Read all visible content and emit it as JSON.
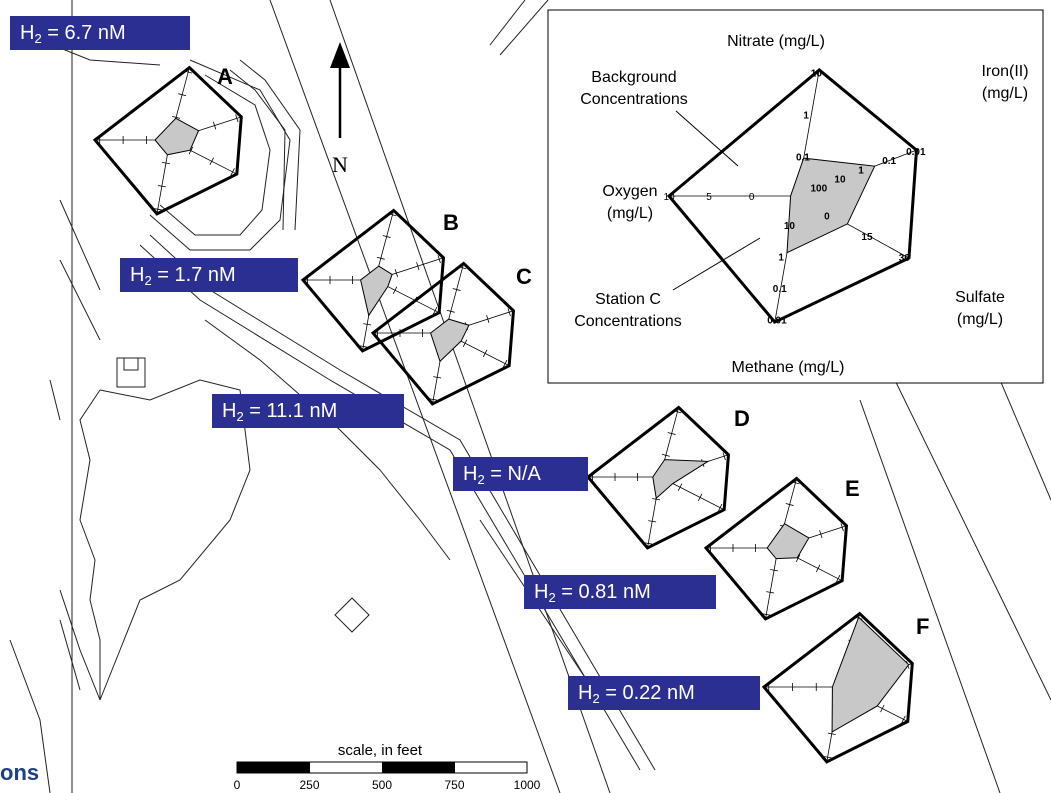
{
  "north_label": "N",
  "brand_text": "ons",
  "stations": [
    {
      "id": "A",
      "h2_prefix": "H",
      "h2_sub": "2",
      "h2_value": " = 6.7 nM"
    },
    {
      "id": "B",
      "h2_prefix": "H",
      "h2_sub": "2",
      "h2_value": " = 1.7 nM"
    },
    {
      "id": "C",
      "h2_prefix": "H",
      "h2_sub": "2",
      "h2_value": " = 11.1 nM"
    },
    {
      "id": "D",
      "h2_prefix": "H",
      "h2_sub": "2",
      "h2_value": " = N/A"
    },
    {
      "id": "E",
      "h2_prefix": "H",
      "h2_sub": "2",
      "h2_value": " = 0.81 nM"
    },
    {
      "id": "F",
      "h2_prefix": "H",
      "h2_sub": "2",
      "h2_value": " = 0.22 nM"
    }
  ],
  "legend": {
    "axes": [
      {
        "name": "Nitrate (mg/L)",
        "ticks": [
          "10",
          "1",
          "0.1"
        ]
      },
      {
        "name": "Iron(II) (mg/L)",
        "ticks": [
          "0.01",
          "0.1",
          "1",
          "10",
          "100"
        ]
      },
      {
        "name": "Sulfate (mg/L)",
        "ticks": [
          "30",
          "15",
          "0"
        ]
      },
      {
        "name": "Methane (mg/L)",
        "ticks": [
          "0.01",
          "0.1",
          "1",
          "10"
        ]
      },
      {
        "name": "Oxygen (mg/L)",
        "ticks": [
          "10",
          "5",
          "0"
        ]
      }
    ],
    "nitrate_label": "Nitrate (mg/L)",
    "iron_label_1": "Iron(II)",
    "iron_label_2": "(mg/L)",
    "sulfate_label_1": "Sulfate",
    "sulfate_label_2": "(mg/L)",
    "methane_label": "Methane (mg/L)",
    "oxygen_label_1": "Oxygen",
    "oxygen_label_2": "(mg/L)",
    "background_label_1": "Background",
    "background_label_2": "Concentrations",
    "station_label_1": "Station C",
    "station_label_2": "Concentrations"
  },
  "scale_bar": {
    "title": "scale, in feet",
    "ticks": [
      "0",
      "250",
      "500",
      "750",
      "1000"
    ]
  }
}
